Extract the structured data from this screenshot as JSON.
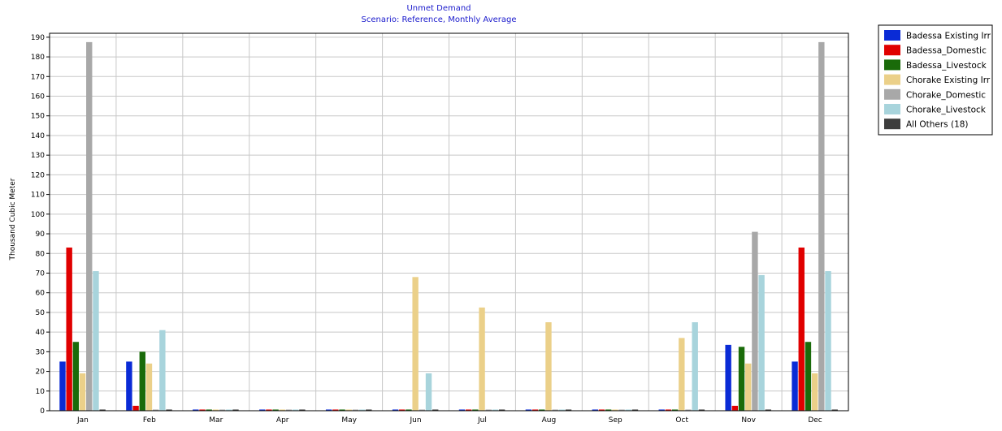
{
  "chart_data": {
    "type": "bar",
    "title": "Unmet Demand",
    "subtitle": "Scenario: Reference,  Monthly Average",
    "xlabel": "",
    "ylabel": "Thousand Cubic Meter",
    "ylim": [
      0,
      192
    ],
    "ytick_step": 10,
    "grid": true,
    "legend_position": "right",
    "categories": [
      "Jan",
      "Feb",
      "Mar",
      "Apr",
      "May",
      "Jun",
      "Jul",
      "Aug",
      "Sep",
      "Oct",
      "Nov",
      "Dec"
    ],
    "series": [
      {
        "name": "Badessa Existing Irr",
        "color": "#0a2bd6",
        "values": [
          25,
          25,
          0,
          0,
          0,
          0,
          0,
          0,
          0,
          0,
          33.5,
          25
        ]
      },
      {
        "name": "Badessa_Domestic",
        "color": "#e00000",
        "values": [
          83,
          2.5,
          0,
          0,
          0,
          0,
          0,
          0,
          0,
          0,
          2.5,
          83
        ]
      },
      {
        "name": "Badessa_Livestock",
        "color": "#1a6b0a",
        "values": [
          35,
          30,
          0,
          0,
          0,
          0,
          0,
          0,
          0,
          0,
          32.5,
          35
        ]
      },
      {
        "name": "Chorake Existing Irr",
        "color": "#ebd089",
        "values": [
          19,
          24,
          0,
          0,
          0,
          68,
          52.5,
          45,
          0,
          37,
          24,
          19
        ]
      },
      {
        "name": "Chorake_Domestic",
        "color": "#a8a8a8",
        "values": [
          187.5,
          0,
          0,
          0,
          0,
          0,
          0,
          0,
          0,
          0,
          91,
          187.5
        ]
      },
      {
        "name": "Chorake_Livestock",
        "color": "#a8d4dc",
        "values": [
          71,
          41,
          0,
          0,
          0,
          19,
          0,
          0,
          0,
          45,
          69,
          71
        ]
      },
      {
        "name": "All Others (18)",
        "color": "#3d3d3d",
        "values": [
          0,
          0,
          0,
          0,
          0,
          0,
          0,
          0,
          0,
          0,
          0,
          0
        ]
      }
    ],
    "legend_labels": [
      "Badessa Existing Irr",
      "Badessa_Domestic",
      "Badessa_Livestock",
      "Chorake Existing Irr",
      "Chorake_Domestic",
      "Chorake_Livestock",
      "All Others (18)"
    ]
  }
}
